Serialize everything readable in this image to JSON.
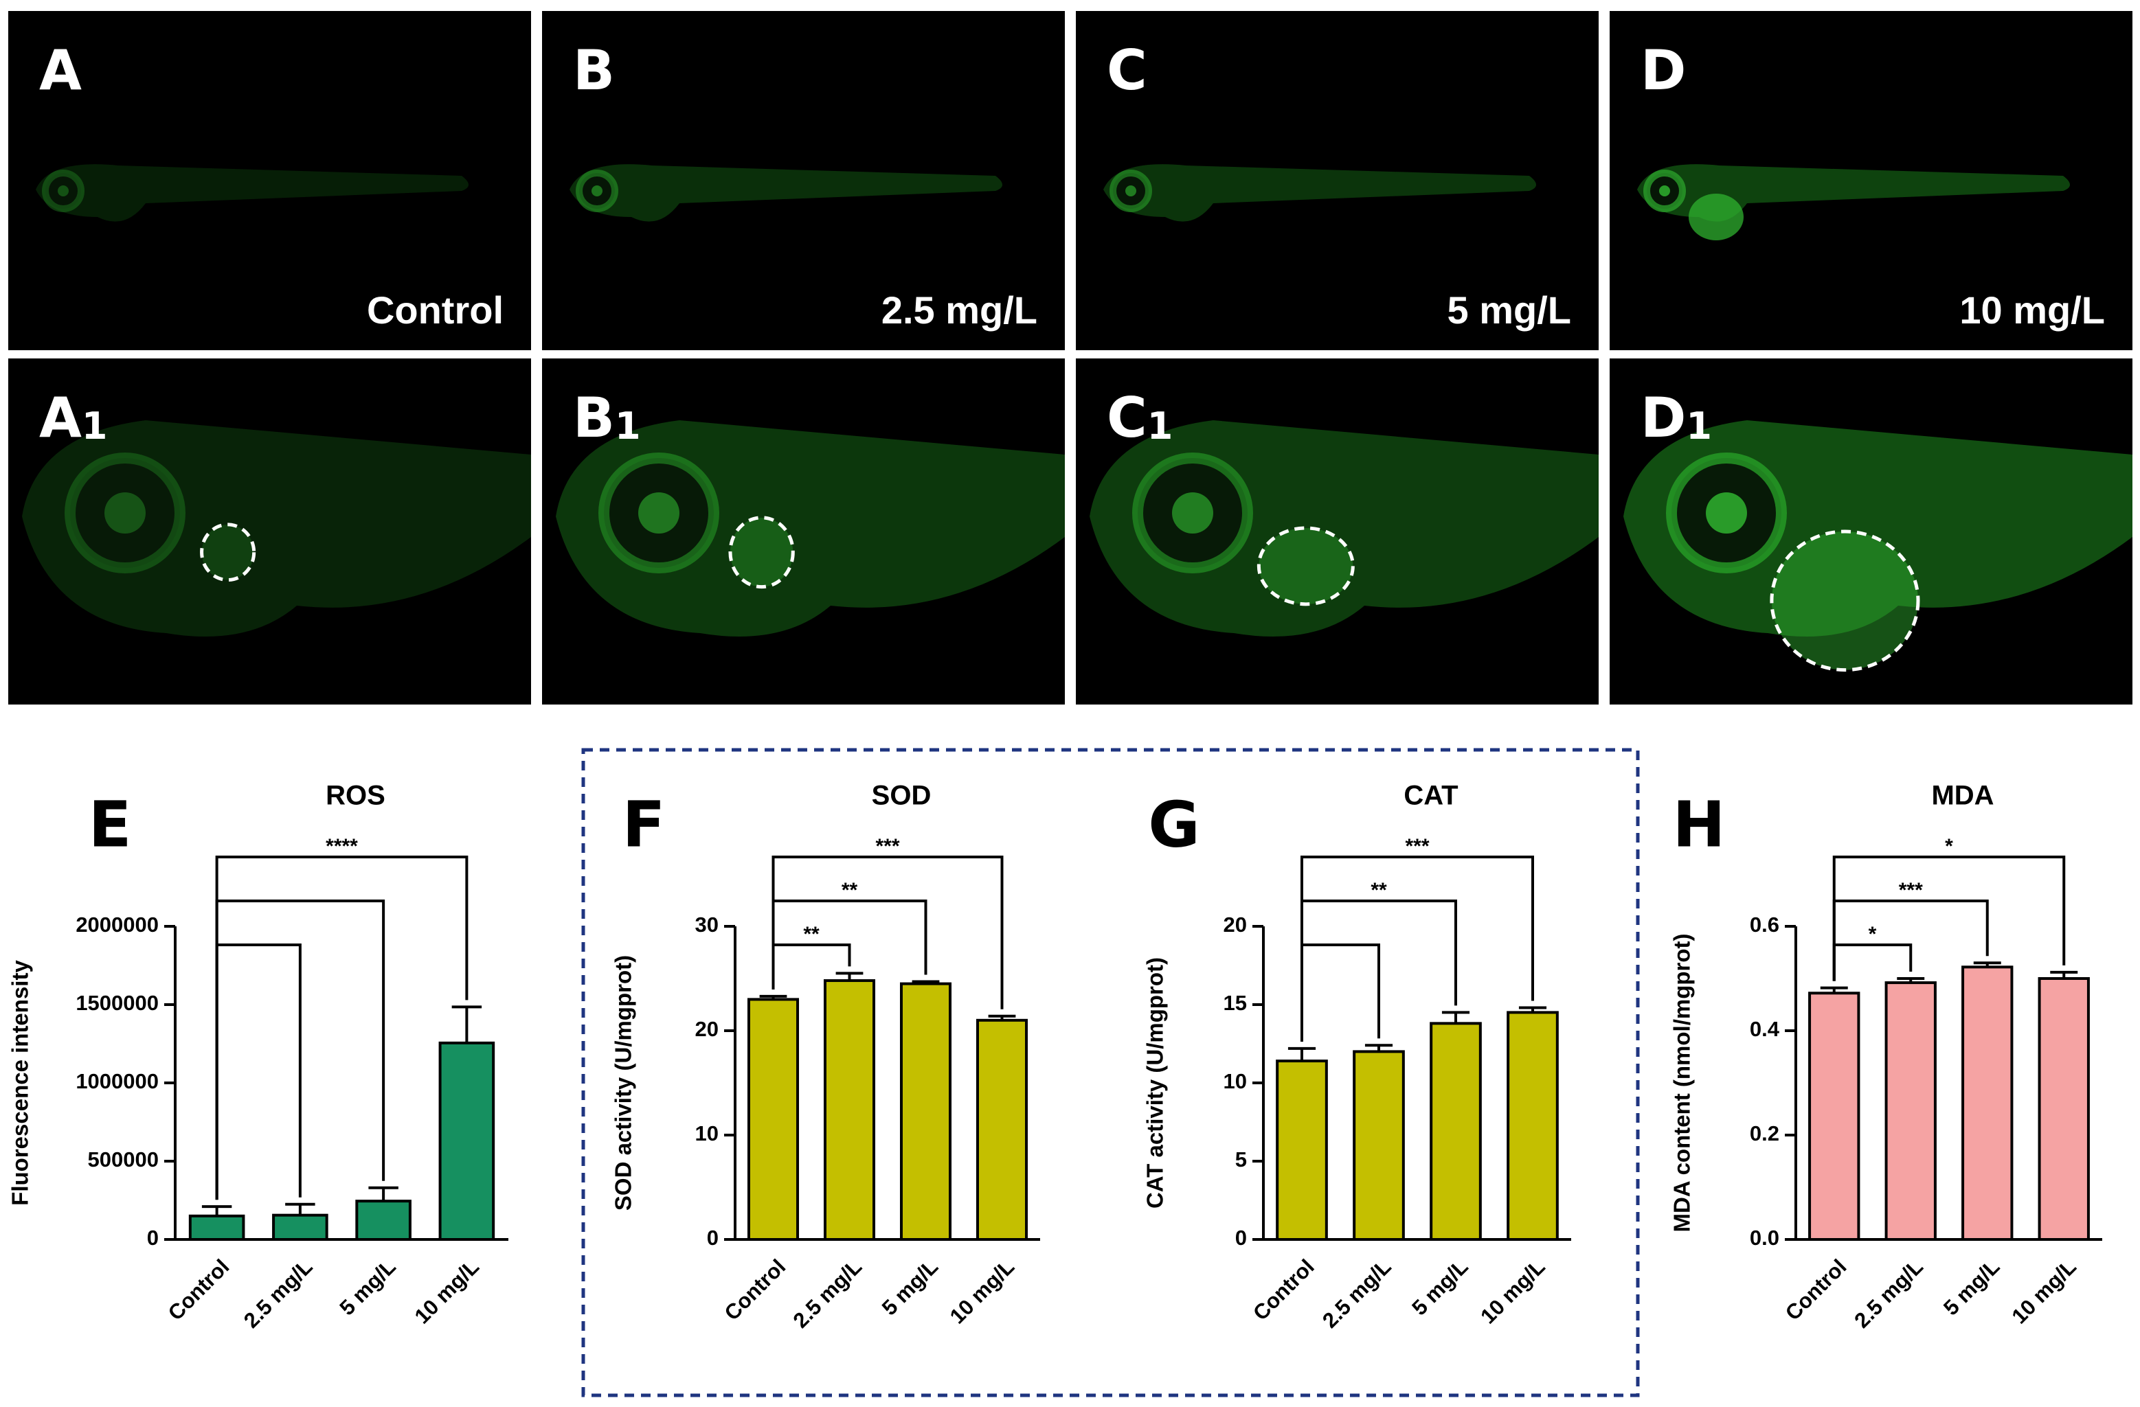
{
  "images": [
    {
      "label": "A",
      "caption": "Control"
    },
    {
      "label": "B",
      "caption": "2.5 mg/L"
    },
    {
      "label": "C",
      "caption": "5 mg/L"
    },
    {
      "label": "D",
      "caption": "10 mg/L"
    }
  ],
  "zoom_images": [
    {
      "label": "A",
      "subscript": "1"
    },
    {
      "label": "B",
      "subscript": "1"
    },
    {
      "label": "C",
      "subscript": "1"
    },
    {
      "label": "D",
      "subscript": "1"
    }
  ],
  "chart_data": [
    {
      "type": "bar",
      "panel": "E",
      "title": "ROS",
      "ylabel": "Fluorescence intensity",
      "categories": [
        "Control",
        "2.5 mg/L",
        "5 mg/L",
        "10 mg/L"
      ],
      "values": [
        150000,
        155000,
        245000,
        1255000
      ],
      "errors": [
        60000,
        70000,
        85000,
        230000
      ],
      "color": "#169060",
      "ylim": [
        0,
        2000000
      ],
      "yticks": [
        0,
        500000,
        1000000,
        1500000,
        2000000
      ],
      "brackets": [
        {
          "from": 0,
          "to": 1
        },
        {
          "from": 0,
          "to": 2
        },
        {
          "from": 0,
          "to": 3,
          "label": "****"
        }
      ]
    },
    {
      "type": "bar",
      "panel": "F",
      "title": "SOD",
      "ylabel": "SOD activity (U/mgprot)",
      "categories": [
        "Control",
        "2.5 mg/L",
        "5 mg/L",
        "10 mg/L"
      ],
      "values": [
        23,
        24.8,
        24.5,
        21
      ],
      "errors": [
        0.3,
        0.7,
        0.2,
        0.4
      ],
      "color": "#c4bf00",
      "ylim": [
        0,
        30
      ],
      "yticks": [
        0,
        10,
        20,
        30
      ],
      "brackets": [
        {
          "from": 0,
          "to": 1,
          "label": "**"
        },
        {
          "from": 0,
          "to": 2,
          "label": "**"
        },
        {
          "from": 0,
          "to": 3,
          "label": "***"
        }
      ]
    },
    {
      "type": "bar",
      "panel": "G",
      "title": "CAT",
      "ylabel": "CAT activity (U/mgprot)",
      "categories": [
        "Control",
        "2.5 mg/L",
        "5 mg/L",
        "10 mg/L"
      ],
      "values": [
        11.4,
        12,
        13.8,
        14.5
      ],
      "errors": [
        0.8,
        0.4,
        0.7,
        0.3
      ],
      "color": "#c4bf00",
      "ylim": [
        0,
        20
      ],
      "yticks": [
        0,
        5,
        10,
        15,
        20
      ],
      "brackets": [
        {
          "from": 0,
          "to": 1
        },
        {
          "from": 0,
          "to": 2,
          "label": "**"
        },
        {
          "from": 0,
          "to": 3,
          "label": "***"
        }
      ]
    },
    {
      "type": "bar",
      "panel": "H",
      "title": "MDA",
      "ylabel": "MDA content (nmol/mgprot)",
      "categories": [
        "Control",
        "2.5 mg/L",
        "5 mg/L",
        "10 mg/L"
      ],
      "values": [
        0.472,
        0.492,
        0.522,
        0.5
      ],
      "errors": [
        0.01,
        0.008,
        0.008,
        0.012
      ],
      "color": "#f5a3a3",
      "ylim": [
        0,
        0.6
      ],
      "yticks": [
        {
          "value": 0,
          "label": "0.0"
        },
        0.2,
        0.4,
        0.6
      ],
      "brackets": [
        {
          "from": 0,
          "to": 1,
          "label": "*"
        },
        {
          "from": 0,
          "to": 2,
          "label": "***"
        },
        {
          "from": 0,
          "to": 3,
          "label": "*"
        }
      ]
    }
  ]
}
